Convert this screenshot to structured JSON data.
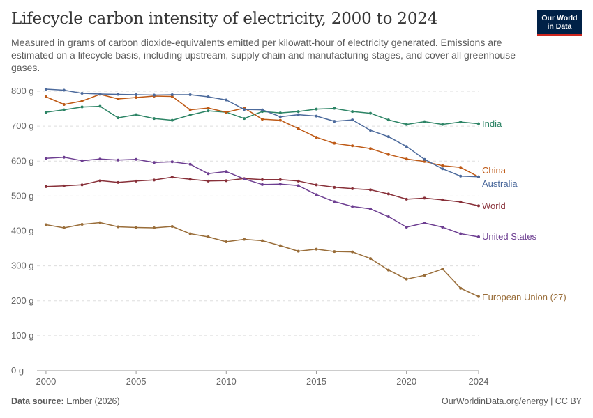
{
  "header": {
    "title": "Lifecycle carbon intensity of electricity, 2000 to 2024",
    "subtitle": "Measured in grams of carbon dioxide-equivalents emitted per kilowatt-hour of electricity generated. Emissions are estimated on a lifecycle basis, including upstream, supply chain and manufacturing stages, and cover all greenhouse gases."
  },
  "logo": {
    "line1": "Our World",
    "line2": "in Data",
    "bg_color": "#002147",
    "accent_color": "#ce261e"
  },
  "footer": {
    "source_label": "Data source:",
    "source_value": "Ember (2026)",
    "url": "OurWorldinData.org/energy | CC BY"
  },
  "chart_data": {
    "type": "line",
    "title": "Lifecycle carbon intensity of electricity, 2000 to 2024",
    "xlabel": "",
    "ylabel": "",
    "xlim": [
      1999.5,
      2024
    ],
    "ylim": [
      0,
      800
    ],
    "y_ticks": [
      0,
      100,
      200,
      300,
      400,
      500,
      600,
      700,
      800
    ],
    "y_tick_labels": [
      "0 g",
      "100 g",
      "200 g",
      "300 g",
      "400 g",
      "500 g",
      "600 g",
      "700 g",
      "800 g"
    ],
    "x_ticks": [
      2000,
      2005,
      2010,
      2015,
      2020,
      2024
    ],
    "x_tick_labels": [
      "2000",
      "2005",
      "2010",
      "2015",
      "2020",
      "2024"
    ],
    "grid": "horizontal dashed",
    "legend": "inline labels at right end of lines",
    "x": [
      2000,
      2001,
      2002,
      2003,
      2004,
      2005,
      2006,
      2007,
      2008,
      2009,
      2010,
      2011,
      2012,
      2013,
      2014,
      2015,
      2016,
      2017,
      2018,
      2019,
      2020,
      2021,
      2022,
      2023,
      2024
    ],
    "series": [
      {
        "name": "India",
        "color": "#2c8465",
        "values": [
          740,
          747,
          755,
          757,
          724,
          733,
          722,
          717,
          732,
          744,
          740,
          722,
          742,
          738,
          742,
          749,
          751,
          742,
          737,
          718,
          705,
          713,
          705,
          712,
          707
        ]
      },
      {
        "name": "China",
        "color": "#be5915",
        "values": [
          784,
          762,
          772,
          791,
          778,
          782,
          786,
          785,
          747,
          752,
          740,
          752,
          720,
          717,
          693,
          668,
          651,
          644,
          636,
          619,
          606,
          599,
          587,
          582,
          555
        ]
      },
      {
        "name": "Australia",
        "color": "#4c6a9c",
        "values": [
          806,
          803,
          794,
          792,
          791,
          790,
          789,
          790,
          790,
          784,
          775,
          748,
          747,
          727,
          733,
          729,
          714,
          718,
          688,
          670,
          642,
          605,
          578,
          557,
          555
        ]
      },
      {
        "name": "World",
        "color": "#883039",
        "values": [
          527,
          529,
          532,
          544,
          539,
          543,
          546,
          554,
          548,
          543,
          544,
          550,
          547,
          547,
          543,
          532,
          525,
          521,
          518,
          506,
          491,
          494,
          489,
          483,
          472
        ]
      },
      {
        "name": "United States",
        "color": "#6d3e91",
        "values": [
          608,
          611,
          601,
          606,
          603,
          605,
          596,
          598,
          591,
          564,
          570,
          549,
          533,
          534,
          530,
          504,
          484,
          470,
          463,
          441,
          411,
          423,
          411,
          392,
          383
        ]
      },
      {
        "name": "European Union (27)",
        "color": "#996d39",
        "values": [
          418,
          409,
          419,
          424,
          412,
          410,
          409,
          413,
          392,
          383,
          369,
          376,
          372,
          358,
          342,
          348,
          341,
          340,
          321,
          288,
          262,
          273,
          291,
          236,
          212
        ]
      }
    ]
  }
}
